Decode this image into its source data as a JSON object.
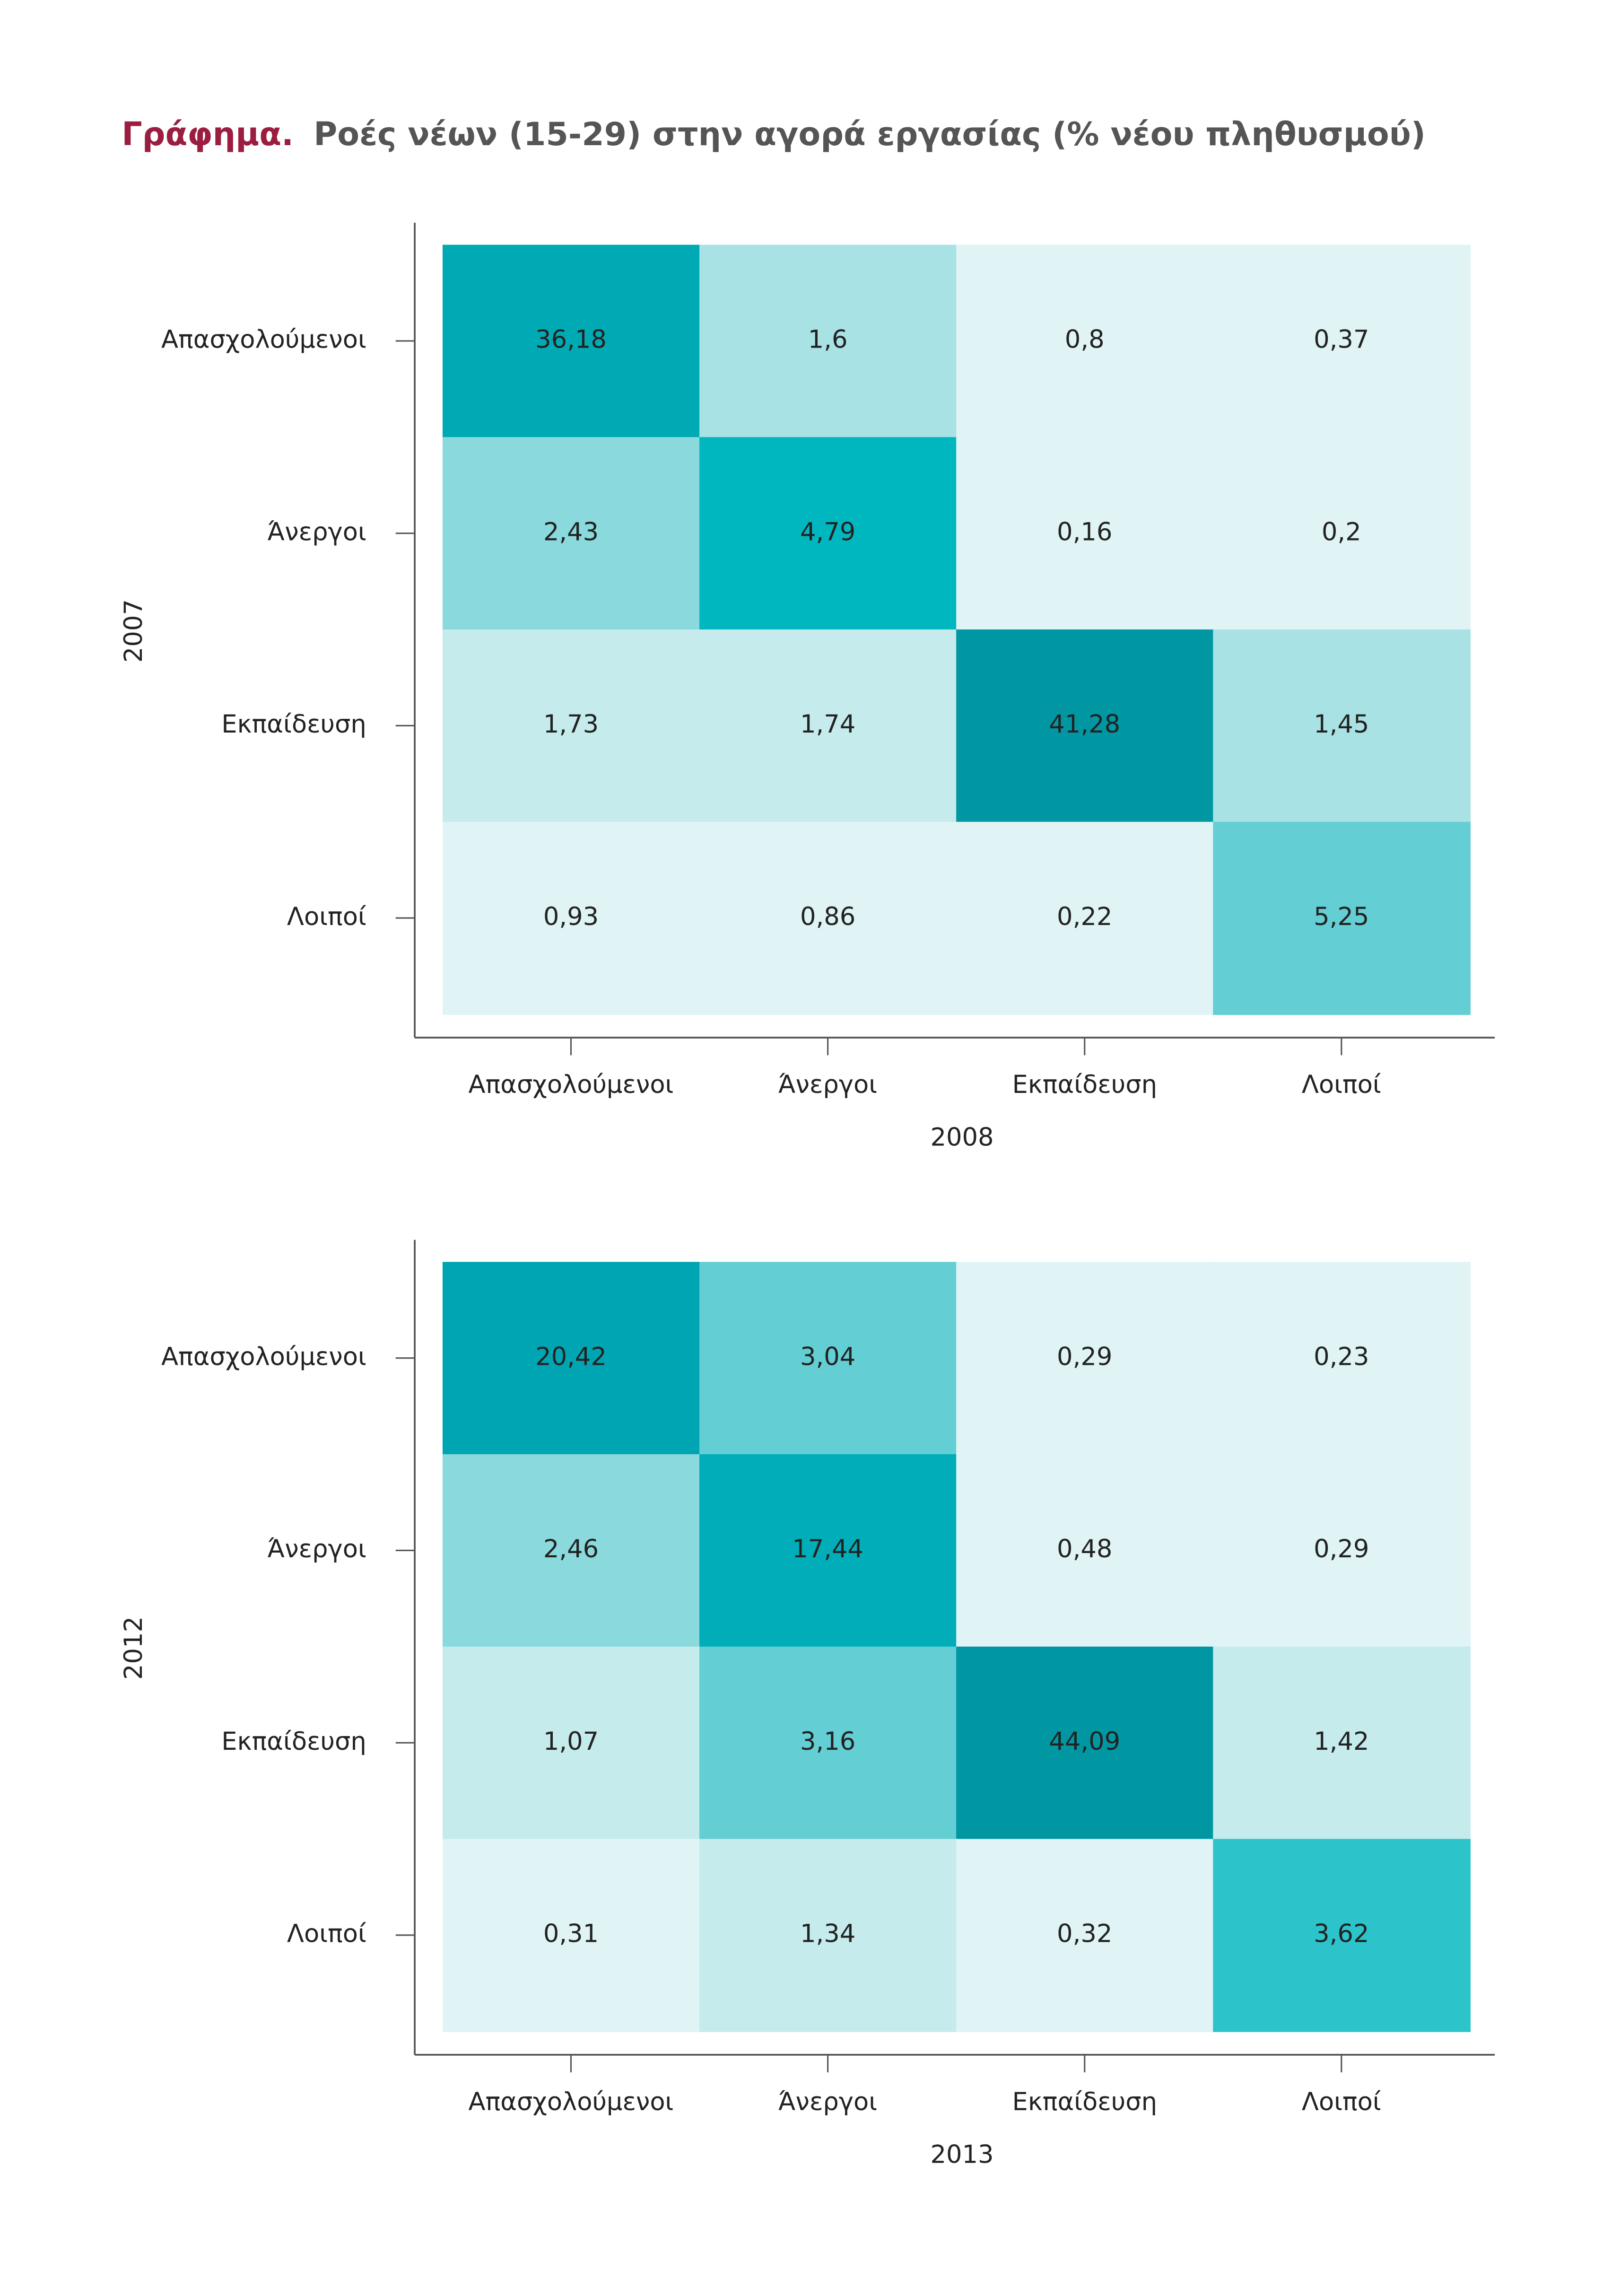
{
  "header": {
    "label": "Γράφημα.",
    "text": "Ροές νέων (15-29) στην αγορά εργασίας (% νέου πληθυσμού)"
  },
  "chart_data": [
    {
      "type": "heatmap",
      "xlabel": "2008",
      "ylabel": "2007",
      "x_categories": [
        "Απασχολούμενοι",
        "Άνεργοι",
        "Εκπαίδευση",
        "Λοιποί"
      ],
      "y_categories": [
        "Απασχολούμενοι",
        "Άνεργοι",
        "Εκπαίδευση",
        "Λοιποί"
      ],
      "values": [
        [
          36.18,
          1.6,
          0.8,
          0.37
        ],
        [
          2.43,
          4.79,
          0.16,
          0.2
        ],
        [
          1.73,
          1.74,
          41.28,
          1.45
        ],
        [
          0.93,
          0.86,
          0.22,
          5.25
        ]
      ],
      "value_labels": [
        [
          "36,18",
          "1,6",
          "0,8",
          "0,37"
        ],
        [
          "2,43",
          "4,79",
          "0,16",
          "0,2"
        ],
        [
          "1,73",
          "1,74",
          "41,28",
          "1,45"
        ],
        [
          "0,93",
          "0,86",
          "0,22",
          "5,25"
        ]
      ],
      "colors": [
        [
          "#00aab5",
          "#a8e2e4",
          "#e0f4f5",
          "#e0f4f5"
        ],
        [
          "#8ad9dc",
          "#00b7c0",
          "#e0f4f5",
          "#e0f4f5"
        ],
        [
          "#c5ebec",
          "#c5ebec",
          "#0097a3",
          "#a8e2e4"
        ],
        [
          "#e0f4f5",
          "#e0f4f5",
          "#e0f4f5",
          "#63ced3"
        ]
      ]
    },
    {
      "type": "heatmap",
      "xlabel": "2013",
      "ylabel": "2012",
      "x_categories": [
        "Απασχολούμενοι",
        "Άνεργοι",
        "Εκπαίδευση",
        "Λοιποί"
      ],
      "y_categories": [
        "Απασχολούμενοι",
        "Άνεργοι",
        "Εκπαίδευση",
        "Λοιποί"
      ],
      "values": [
        [
          20.42,
          3.04,
          0.29,
          0.23
        ],
        [
          2.46,
          17.44,
          0.48,
          0.29
        ],
        [
          1.07,
          3.16,
          44.09,
          1.42
        ],
        [
          0.31,
          1.34,
          0.32,
          3.62
        ]
      ],
      "value_labels": [
        [
          "20,42",
          "3,04",
          "0,29",
          "0,23"
        ],
        [
          "2,46",
          "17,44",
          "0,48",
          "0,29"
        ],
        [
          "1,07",
          "3,16",
          "44,09",
          "1,42"
        ],
        [
          "0,31",
          "1,34",
          "0,32",
          "3,62"
        ]
      ],
      "colors": [
        [
          "#00a5b3",
          "#63ced3",
          "#e0f4f5",
          "#e0f4f5"
        ],
        [
          "#8ad9dc",
          "#00adb8",
          "#e0f4f5",
          "#e0f4f5"
        ],
        [
          "#c5ebec",
          "#63ced3",
          "#0097a3",
          "#c5ebec"
        ],
        [
          "#e0f4f5",
          "#c5ebec",
          "#e0f4f5",
          "#2cc3cb"
        ]
      ]
    }
  ]
}
